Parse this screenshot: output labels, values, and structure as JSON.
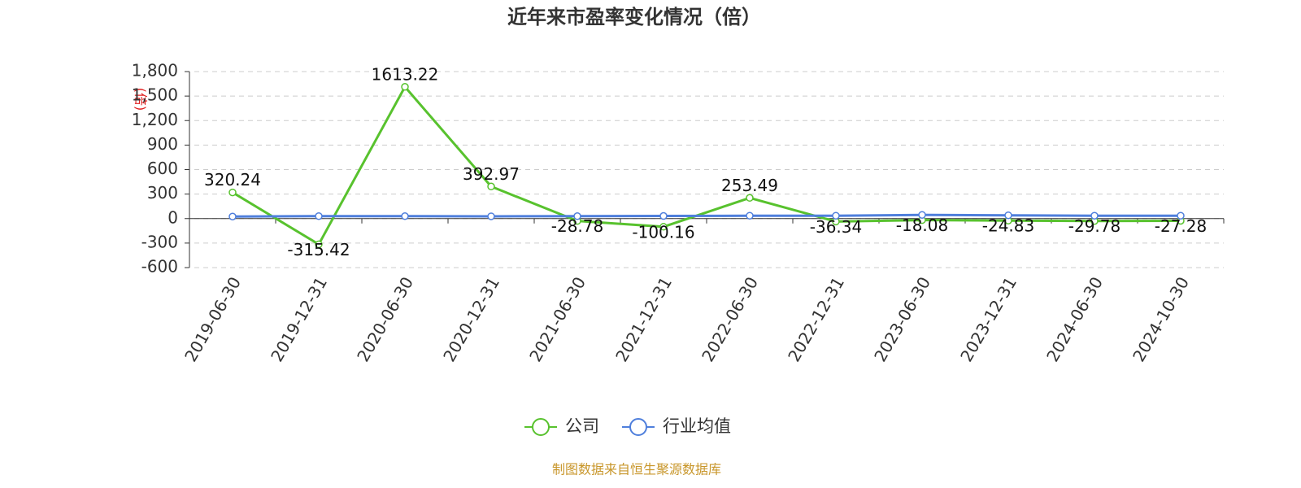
{
  "chart_data": {
    "type": "line",
    "title": "近年来市盈率变化情况（倍）",
    "y_label": "(倍)",
    "categories": [
      "2019-06-30",
      "2019-12-31",
      "2020-06-30",
      "2020-12-31",
      "2021-06-30",
      "2021-12-31",
      "2022-06-30",
      "2022-12-31",
      "2023-06-30",
      "2023-12-31",
      "2024-06-30",
      "2024-10-30"
    ],
    "series": [
      {
        "name": "公司",
        "color": "#58c22e",
        "values": [
          320.24,
          -315.42,
          1613.22,
          392.97,
          -28.78,
          -100.16,
          253.49,
          -36.34,
          -18.08,
          -24.83,
          -29.78,
          -27.28
        ],
        "show_labels": true
      },
      {
        "name": "行业均值",
        "color": "#4f7fdc",
        "values": [
          25,
          30,
          30,
          28,
          30,
          32,
          35,
          35,
          45,
          40,
          35,
          35
        ],
        "show_labels": false
      }
    ],
    "ylim": [
      -600,
      1800
    ],
    "yticks": [
      -600,
      -300,
      0,
      300,
      600,
      900,
      {
        "value": 1200,
        "label": "1,200"
      },
      {
        "value": 1500,
        "label": "1,500"
      },
      {
        "value": 1800,
        "label": "1,800"
      }
    ],
    "grid": true,
    "source": "制图数据来自恒生聚源数据库"
  }
}
